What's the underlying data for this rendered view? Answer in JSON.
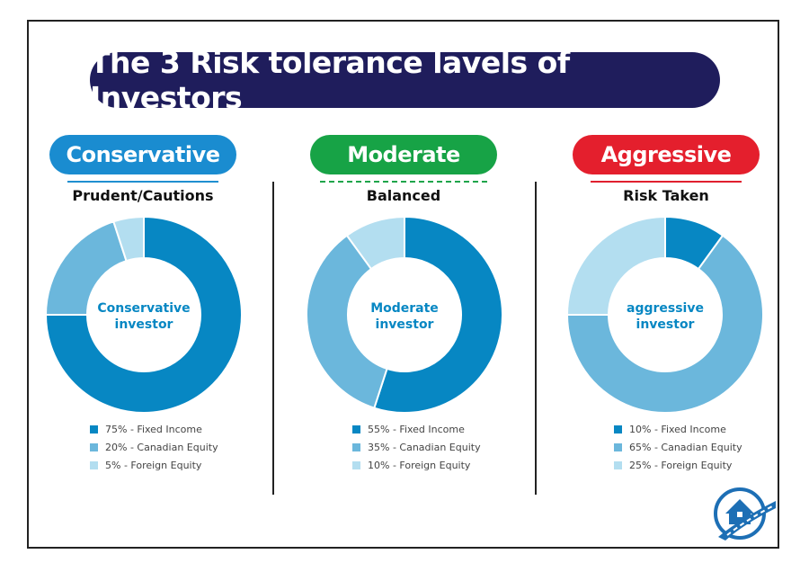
{
  "title": "The 3 Risk tolerance lavels of Investors",
  "colors": {
    "navy": "#1f1d5c",
    "fixed_income": "#0787c3",
    "canadian_equity": "#6bb7dc",
    "foreign_equity": "#b3def0"
  },
  "profiles": [
    {
      "label": "Conservative",
      "subtitle": "Prudent/Cautions",
      "center_line1": "Conservative",
      "center_line2": "investor",
      "pill_color": "#1a8cd0",
      "legend": [
        "75% - Fixed Income",
        "20% - Canadian Equity",
        "5% - Foreign Equity"
      ]
    },
    {
      "label": "Moderate",
      "subtitle": "Balanced",
      "center_line1": "Moderate",
      "center_line2": "investor",
      "pill_color": "#17a346",
      "legend": [
        "55% - Fixed Income",
        "35% - Canadian Equity",
        "10% - Foreign Equity"
      ]
    },
    {
      "label": "Aggressive",
      "subtitle": "Risk Taken",
      "center_line1": "aggressive",
      "center_line2": "investor",
      "pill_color": "#e41f2d",
      "legend": [
        "10% - Fixed Income",
        "65% - Canadian Equity",
        "25% - Foreign Equity"
      ]
    }
  ],
  "chart_data": [
    {
      "type": "pie",
      "title": "Conservative",
      "categories": [
        "Fixed Income",
        "Canadian Equity",
        "Foreign Equity"
      ],
      "values": [
        75,
        20,
        5
      ]
    },
    {
      "type": "pie",
      "title": "Moderate",
      "categories": [
        "Fixed Income",
        "Canadian Equity",
        "Foreign Equity"
      ],
      "values": [
        55,
        35,
        10
      ]
    },
    {
      "type": "pie",
      "title": "Aggressive",
      "categories": [
        "Fixed Income",
        "Canadian Equity",
        "Foreign Equity"
      ],
      "values": [
        10,
        65,
        25
      ]
    }
  ]
}
